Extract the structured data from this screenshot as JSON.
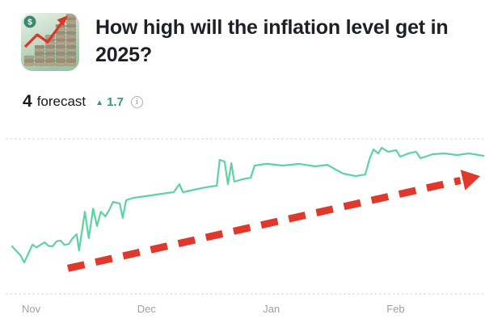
{
  "header": {
    "title": "How high will the inflation level get in 2025?",
    "badge_glyph": "$"
  },
  "stats": {
    "forecast_count": "4",
    "forecast_label": "forecast",
    "delta_icon": "▲",
    "delta_value": "1.7",
    "info_glyph": "i"
  },
  "colors": {
    "line": "#5cd3a3",
    "arrow": "#e0382a",
    "delta": "#2f9e6c",
    "axis_text": "#9aa2ab",
    "gridline": "#d7dbe0",
    "title_text": "#1d2127"
  },
  "chart_data": {
    "type": "line",
    "title": "",
    "xlabel": "",
    "ylabel": "",
    "ylim": [
      0,
      100
    ],
    "grid": "horizontal-dotted-top-and-bottom",
    "legend": "none",
    "x_axis": {
      "ticks": [
        {
          "label": "Nov",
          "pos": 4.5
        },
        {
          "label": "Dec",
          "pos": 28.3
        },
        {
          "label": "Jan",
          "pos": 54.2
        },
        {
          "label": "Feb",
          "pos": 79.7
        }
      ]
    },
    "series": [
      {
        "name": "forecast-history",
        "points": [
          [
            2.5,
            30.7
          ],
          [
            4.2,
            25.0
          ],
          [
            5.0,
            20.3
          ],
          [
            6.7,
            31.8
          ],
          [
            7.5,
            30.0
          ],
          [
            9.2,
            33.3
          ],
          [
            10.0,
            31.0
          ],
          [
            10.8,
            30.7
          ],
          [
            11.7,
            34.0
          ],
          [
            12.5,
            34.4
          ],
          [
            13.3,
            31.5
          ],
          [
            14.2,
            32.3
          ],
          [
            15.0,
            36.0
          ],
          [
            15.8,
            38.5
          ],
          [
            16.3,
            28.0
          ],
          [
            17.5,
            53.0
          ],
          [
            18.3,
            36.0
          ],
          [
            19.2,
            55.0
          ],
          [
            20.0,
            43.8
          ],
          [
            20.8,
            53.0
          ],
          [
            21.7,
            50.0
          ],
          [
            22.5,
            54.0
          ],
          [
            23.3,
            59.4
          ],
          [
            24.7,
            58.3
          ],
          [
            25.3,
            49.0
          ],
          [
            26.0,
            60.4
          ],
          [
            27.5,
            62.0
          ],
          [
            30.0,
            63.0
          ],
          [
            33.3,
            64.6
          ],
          [
            35.8,
            65.6
          ],
          [
            37.0,
            70.8
          ],
          [
            37.7,
            65.6
          ],
          [
            40.0,
            67.2
          ],
          [
            42.5,
            68.8
          ],
          [
            44.7,
            69.8
          ],
          [
            45.3,
            86.5
          ],
          [
            46.3,
            85.4
          ],
          [
            47.0,
            70.8
          ],
          [
            47.7,
            84.4
          ],
          [
            48.3,
            72.4
          ],
          [
            50.0,
            74.0
          ],
          [
            51.7,
            75.0
          ],
          [
            52.5,
            82.8
          ],
          [
            55.0,
            83.9
          ],
          [
            58.3,
            82.8
          ],
          [
            61.7,
            83.9
          ],
          [
            65.0,
            82.3
          ],
          [
            67.5,
            83.3
          ],
          [
            69.2,
            80.2
          ],
          [
            70.8,
            77.6
          ],
          [
            73.3,
            76.0
          ],
          [
            75.3,
            77.0
          ],
          [
            76.3,
            88.0
          ],
          [
            77.0,
            93.2
          ],
          [
            78.0,
            90.6
          ],
          [
            78.7,
            94.3
          ],
          [
            80.0,
            91.7
          ],
          [
            81.7,
            92.7
          ],
          [
            82.5,
            88.5
          ],
          [
            84.2,
            90.6
          ],
          [
            85.8,
            91.7
          ],
          [
            86.7,
            87.5
          ],
          [
            89.2,
            90.1
          ],
          [
            91.7,
            90.6
          ],
          [
            94.2,
            89.6
          ],
          [
            96.7,
            90.6
          ],
          [
            99.7,
            89.1
          ]
        ]
      }
    ],
    "annotation_arrow": {
      "style": "dashed",
      "from": [
        14,
        16.5
      ],
      "to": [
        99,
        76
      ]
    }
  }
}
